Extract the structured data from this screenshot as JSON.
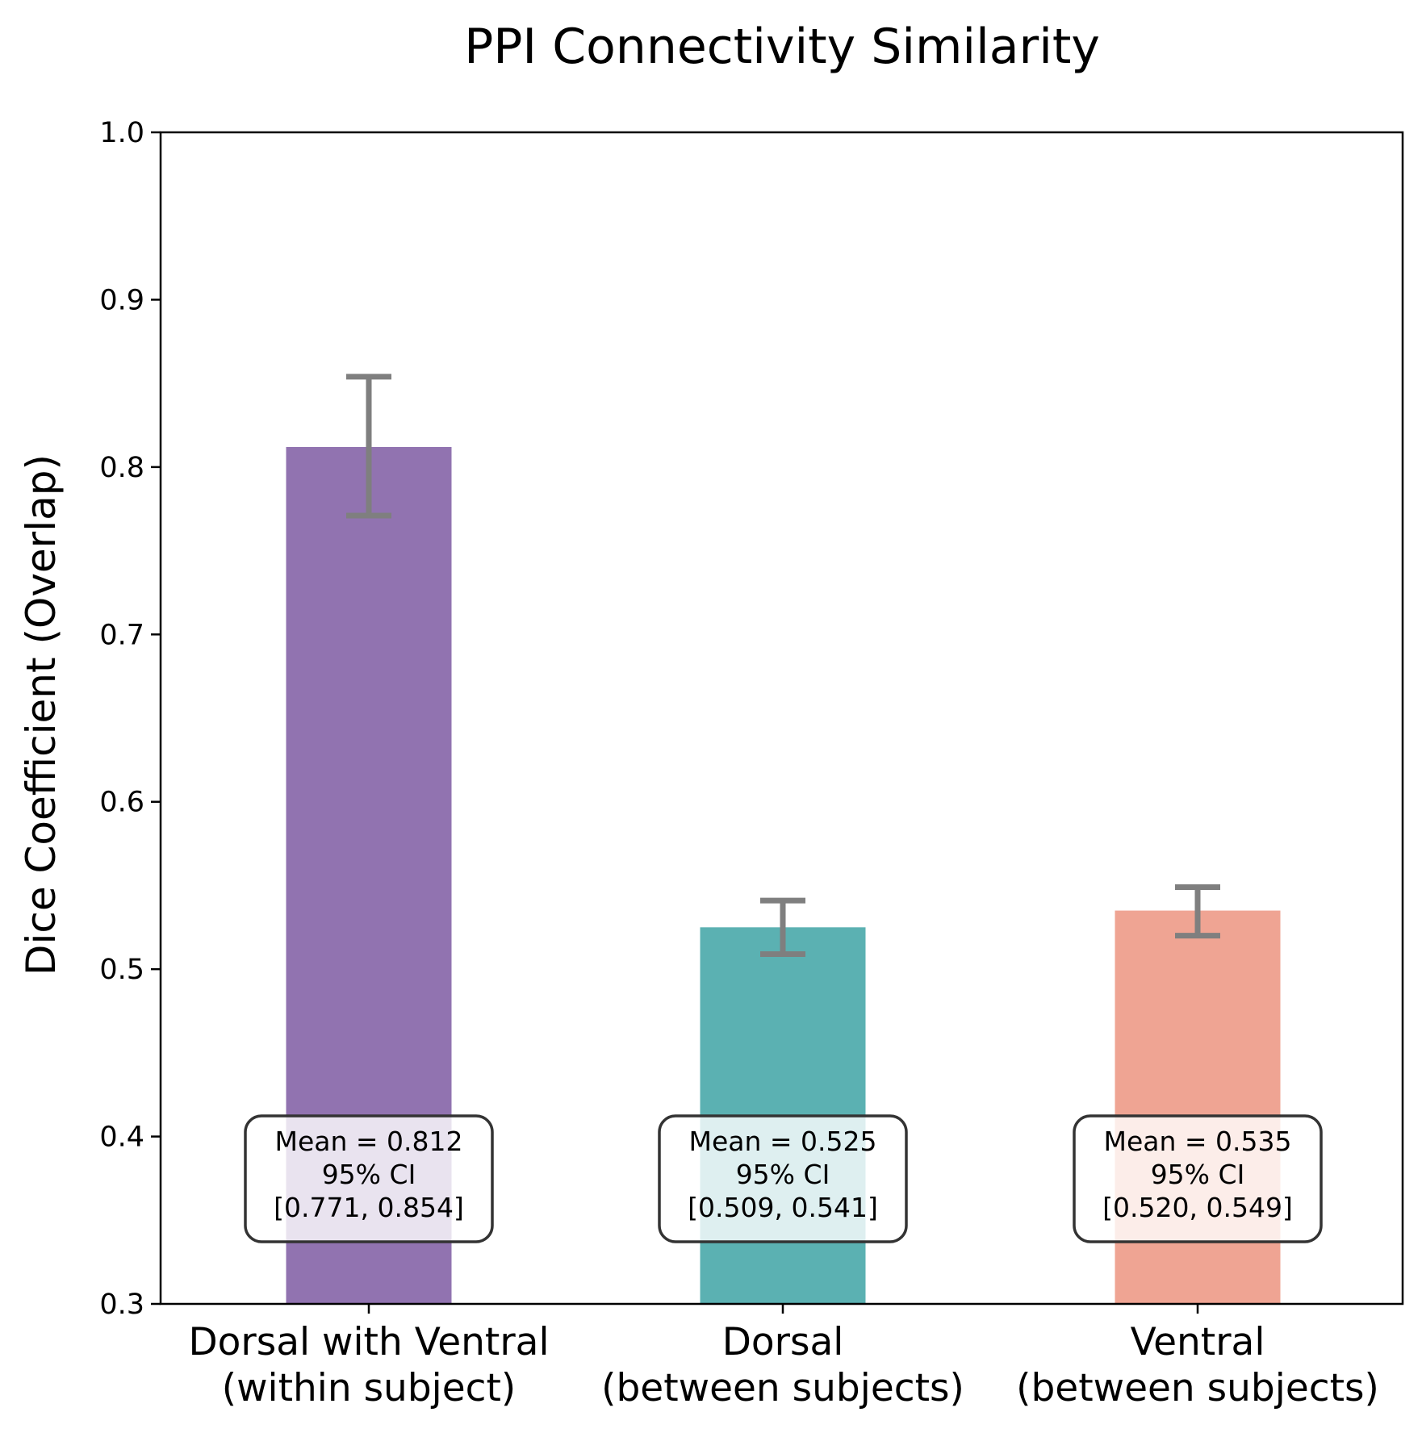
{
  "chart_data": {
    "type": "bar",
    "title": "PPI Connectivity Similarity",
    "xlabel": "",
    "ylabel": "Dice Coefficient (Overlap)",
    "ylim": [
      0.3,
      1.0
    ],
    "yticks": [
      "0.3",
      "0.4",
      "0.5",
      "0.6",
      "0.7",
      "0.8",
      "0.9",
      "1.0"
    ],
    "ytick_values": [
      0.3,
      0.4,
      0.5,
      0.6,
      0.7,
      0.8,
      0.9,
      1.0
    ],
    "grid": false,
    "categories": [
      [
        "Dorsal with Ventral",
        "(within subject)"
      ],
      [
        "Dorsal",
        "(between subjects)"
      ],
      [
        "Ventral",
        "(between subjects)"
      ]
    ],
    "values": [
      0.812,
      0.525,
      0.535
    ],
    "ci_lower": [
      0.771,
      0.509,
      0.52
    ],
    "ci_upper": [
      0.854,
      0.541,
      0.549
    ],
    "colors": [
      "#9173b0",
      "#5bb1b2",
      "#efa493"
    ],
    "errorbar_color": "#7f7f7f",
    "annotations": [
      [
        "Mean = 0.812",
        "95% CI",
        "[0.771, 0.854]"
      ],
      [
        "Mean = 0.525",
        "95% CI",
        "[0.509, 0.541]"
      ],
      [
        "Mean = 0.535",
        "95% CI",
        "[0.520, 0.549]"
      ]
    ]
  }
}
